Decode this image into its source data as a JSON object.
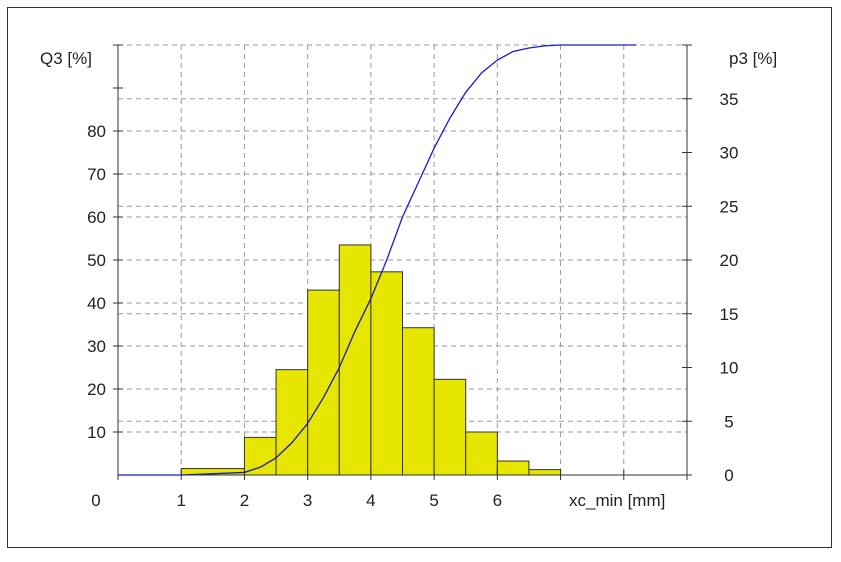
{
  "chart_data": {
    "type": "bar",
    "title": "",
    "left_axis": {
      "label": "Q3 [%]",
      "ylim": [
        0,
        100
      ],
      "ticks": [
        10,
        20,
        30,
        40,
        50,
        60,
        70,
        80
      ],
      "tick_labels": [
        "10",
        "20",
        "30",
        "40",
        "50",
        "60",
        "70",
        "80"
      ]
    },
    "right_axis": {
      "label": "p3 [%]",
      "ylim": [
        0,
        40
      ],
      "ticks": [
        0,
        5,
        10,
        15,
        20,
        25,
        30,
        35
      ],
      "tick_labels": [
        "0",
        "5",
        "10",
        "15",
        "20",
        "25",
        "30",
        "35"
      ]
    },
    "x_axis": {
      "label": "xc_min [mm]",
      "xlim": [
        0,
        9
      ],
      "ticks": [
        0,
        1,
        2,
        3,
        4,
        5,
        6
      ],
      "tick_labels": [
        "0",
        "1",
        "2",
        "3",
        "4",
        "5",
        "6"
      ]
    },
    "grid": true,
    "series": [
      {
        "name": "p3",
        "type": "bar",
        "axis": "right",
        "color": "#e6e600",
        "edge_color": "#333333",
        "bins": [
          {
            "x0": 1.0,
            "x1": 2.0,
            "value": 0.6
          },
          {
            "x0": 2.0,
            "x1": 2.5,
            "value": 3.5
          },
          {
            "x0": 2.5,
            "x1": 3.0,
            "value": 9.8
          },
          {
            "x0": 3.0,
            "x1": 3.5,
            "value": 17.2
          },
          {
            "x0": 3.5,
            "x1": 4.0,
            "value": 21.4
          },
          {
            "x0": 4.0,
            "x1": 4.5,
            "value": 18.9
          },
          {
            "x0": 4.5,
            "x1": 5.0,
            "value": 13.7
          },
          {
            "x0": 5.0,
            "x1": 5.5,
            "value": 8.9
          },
          {
            "x0": 5.5,
            "x1": 6.0,
            "value": 4.0
          },
          {
            "x0": 6.0,
            "x1": 6.5,
            "value": 1.3
          },
          {
            "x0": 6.5,
            "x1": 7.0,
            "value": 0.5
          }
        ]
      },
      {
        "name": "Q3",
        "type": "line",
        "axis": "left",
        "color": "#1a1acc",
        "x": [
          0,
          1.0,
          2.0,
          2.25,
          2.5,
          2.75,
          3.0,
          3.25,
          3.5,
          3.75,
          4.0,
          4.25,
          4.5,
          4.75,
          5.0,
          5.25,
          5.5,
          5.75,
          6.0,
          6.25,
          6.5,
          6.75,
          7.0,
          8.2
        ],
        "y": [
          0,
          0,
          0.6,
          1.8,
          4.0,
          7.5,
          12.0,
          18.0,
          25.0,
          33.5,
          41.0,
          50.0,
          60.0,
          68.0,
          76.0,
          83.0,
          89.0,
          93.5,
          96.5,
          98.5,
          99.3,
          99.8,
          100,
          100
        ]
      }
    ]
  }
}
